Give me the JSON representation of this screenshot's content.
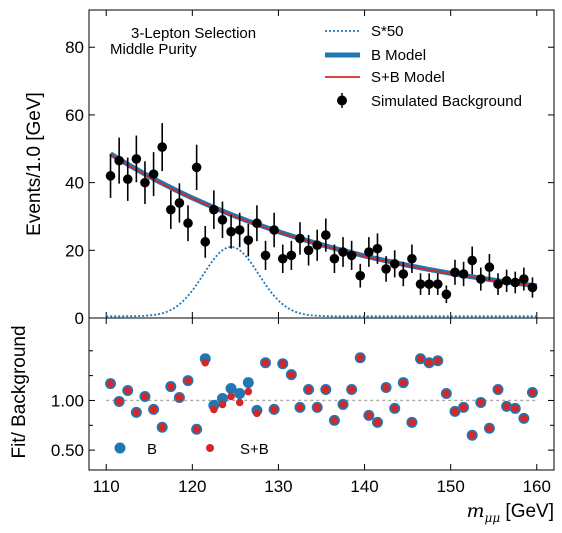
{
  "chart_data": [
    {
      "type": "line",
      "annotations": [
        "3-Lepton Selection",
        "Middle Purity"
      ],
      "ylabel": "Events/1.0 [GeV]",
      "xlim": [
        108,
        162
      ],
      "ylim": [
        0,
        91
      ],
      "xticks": [
        110,
        120,
        130,
        140,
        150,
        160
      ],
      "yticks": [
        0,
        20,
        40,
        60,
        80
      ],
      "legend_position": "top-right",
      "legend": [
        "S*50",
        "B Model",
        "S+B Model",
        "Simulated Background"
      ],
      "colors": {
        "signal": "#1f77b4",
        "b_model": "#1f77b4",
        "sb_model": "#d62728",
        "data": "#000000"
      },
      "series": [
        {
          "name": "Simulated Background",
          "x": [
            110.5,
            111.5,
            112.5,
            113.5,
            114.5,
            115.5,
            116.5,
            117.5,
            118.5,
            119.5,
            120.5,
            121.5,
            122.5,
            123.5,
            124.5,
            125.5,
            126.5,
            127.5,
            128.5,
            129.5,
            130.5,
            131.5,
            132.5,
            133.5,
            134.5,
            135.5,
            136.5,
            137.5,
            138.5,
            139.5,
            140.5,
            141.5,
            142.5,
            143.5,
            144.5,
            145.5,
            146.5,
            147.5,
            148.5,
            149.5,
            150.5,
            151.5,
            152.5,
            153.5,
            154.5,
            155.5,
            156.5,
            157.5,
            158.5,
            159.5
          ],
          "y": [
            42,
            46.5,
            41,
            47,
            40,
            42.5,
            50.5,
            32,
            34,
            28,
            44.5,
            22.5,
            32,
            29,
            25.5,
            26,
            23,
            28,
            18.5,
            26,
            17.5,
            18.5,
            23.5,
            20,
            21.5,
            24.5,
            17.5,
            19.5,
            18.5,
            12.5,
            19.5,
            20.5,
            14.5,
            16,
            13,
            17.5,
            10,
            10,
            10,
            7,
            13.5,
            13,
            17,
            11.5,
            15,
            10,
            11,
            10.5,
            11.5,
            9
          ],
          "yerr": [
            6.5,
            6.8,
            6.4,
            6.9,
            6.3,
            6.5,
            7.1,
            5.7,
            5.8,
            5.3,
            6.7,
            4.7,
            5.7,
            5.4,
            5.0,
            5.1,
            4.8,
            5.3,
            4.3,
            5.1,
            4.2,
            4.3,
            4.8,
            4.5,
            4.6,
            4.9,
            4.2,
            4.4,
            4.3,
            3.5,
            4.4,
            4.5,
            3.8,
            4.0,
            3.6,
            4.2,
            3.2,
            3.2,
            3.2,
            2.6,
            3.7,
            3.6,
            4.1,
            3.4,
            3.9,
            3.2,
            3.3,
            3.2,
            3.4,
            3.0
          ]
        },
        {
          "name": "B Model",
          "x": [
            110.5,
            160
          ],
          "model": "exponential",
          "y_start": 48.5,
          "y_end": 9.5
        },
        {
          "name": "S+B Model",
          "x": [
            110.5,
            160
          ],
          "model": "exponential",
          "y_start": 48.3,
          "y_end": 9.4
        },
        {
          "name": "S*50",
          "x": [
            110,
            160
          ],
          "model": "gaussian",
          "peak_x": 124.5,
          "peak_y": 21,
          "sigma": 3.2,
          "baseline": 0.5
        }
      ]
    },
    {
      "type": "scatter",
      "xlabel": "m_μμ [GeV]",
      "ylabel": "Fit/ Background",
      "xlim": [
        108,
        162
      ],
      "ylim": [
        0.3,
        1.83
      ],
      "yticks": [
        0.5,
        1.0
      ],
      "ytick_labels": [
        "0.50",
        "1.00"
      ],
      "xticks": [
        110,
        120,
        130,
        140,
        150,
        160
      ],
      "xtick_labels": [
        "110",
        "120",
        "130",
        "140",
        "150",
        "160"
      ],
      "reference_line": 1.0,
      "legend": [
        "B",
        "S+B"
      ],
      "legend_position": "bottom-left",
      "series": [
        {
          "name": "B",
          "x": [
            110.5,
            111.5,
            112.5,
            113.5,
            114.5,
            115.5,
            116.5,
            117.5,
            118.5,
            119.5,
            120.5,
            121.5,
            122.5,
            123.5,
            124.5,
            125.5,
            126.5,
            127.5,
            128.5,
            129.5,
            130.5,
            131.5,
            132.5,
            133.5,
            134.5,
            135.5,
            136.5,
            137.5,
            138.5,
            139.5,
            140.5,
            141.5,
            142.5,
            143.5,
            144.5,
            145.5,
            146.5,
            147.5,
            148.5,
            149.5,
            150.5,
            151.5,
            152.5,
            153.5,
            154.5,
            155.5,
            156.5,
            157.5,
            158.5,
            159.5
          ],
          "y": [
            1.17,
            0.99,
            1.1,
            0.88,
            1.04,
            0.91,
            0.73,
            1.14,
            1.03,
            1.2,
            0.71,
            1.42,
            0.95,
            1.02,
            1.12,
            1.07,
            1.18,
            0.9,
            1.38,
            0.91,
            1.37,
            1.26,
            0.93,
            1.11,
            0.93,
            1.11,
            0.8,
            0.96,
            1.11,
            1.43,
            0.85,
            0.78,
            1.13,
            0.92,
            1.18,
            0.78,
            1.42,
            1.38,
            1.4,
            1.07,
            0.89,
            0.93,
            0.65,
            0.98,
            0.72,
            1.11,
            0.94,
            0.92,
            0.82,
            1.08
          ]
        },
        {
          "name": "S+B",
          "x": [
            110.5,
            111.5,
            112.5,
            113.5,
            114.5,
            115.5,
            116.5,
            117.5,
            118.5,
            119.5,
            120.5,
            121.5,
            122.5,
            123.5,
            124.5,
            125.5,
            126.5,
            127.5,
            128.5,
            129.5,
            130.5,
            131.5,
            132.5,
            133.5,
            134.5,
            135.5,
            136.5,
            137.5,
            138.5,
            139.5,
            140.5,
            141.5,
            142.5,
            143.5,
            144.5,
            145.5,
            146.5,
            147.5,
            148.5,
            149.5,
            150.5,
            151.5,
            152.5,
            153.5,
            154.5,
            155.5,
            156.5,
            157.5,
            158.5,
            159.5
          ],
          "y": [
            1.17,
            0.99,
            1.1,
            0.88,
            1.04,
            0.91,
            0.73,
            1.14,
            1.03,
            1.2,
            0.71,
            1.38,
            0.91,
            0.96,
            1.04,
            0.98,
            1.09,
            0.87,
            1.38,
            0.91,
            1.37,
            1.26,
            0.93,
            1.11,
            0.93,
            1.11,
            0.8,
            0.96,
            1.11,
            1.43,
            0.85,
            0.78,
            1.13,
            0.92,
            1.18,
            0.78,
            1.42,
            1.38,
            1.4,
            1.07,
            0.89,
            0.93,
            0.65,
            0.98,
            0.72,
            1.11,
            0.94,
            0.92,
            0.82,
            1.08
          ]
        }
      ]
    }
  ]
}
